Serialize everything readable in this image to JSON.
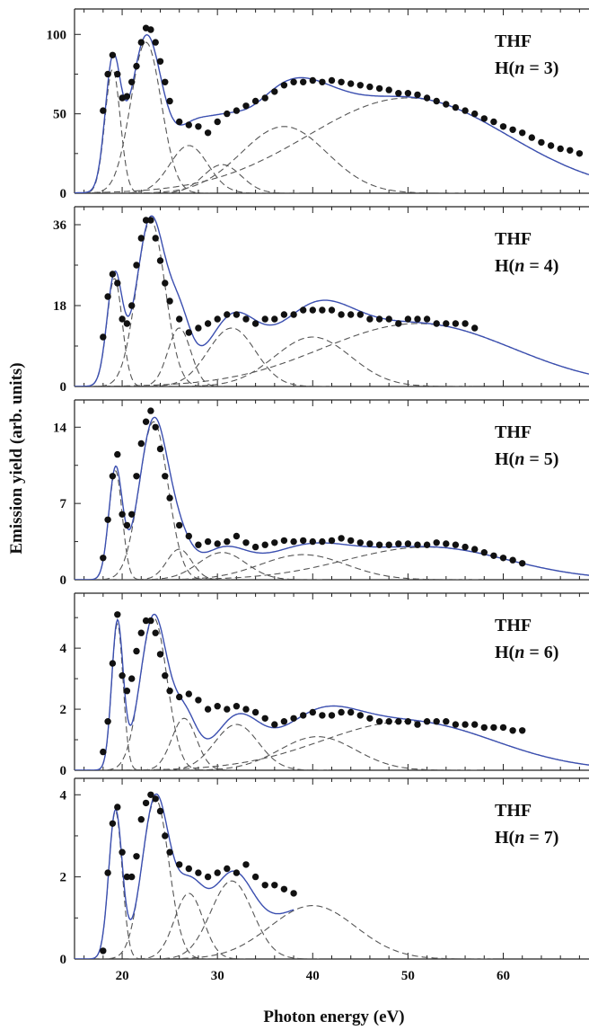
{
  "figure": {
    "xlabel": "Photon energy (eV)",
    "ylabel": "Emission yield (arb. units)",
    "x_tick_labels": [
      "20",
      "30",
      "40",
      "50",
      "60"
    ]
  },
  "style": {
    "fit_color": "#3b4fb0",
    "component_color": "#555555",
    "point_color": "#111111",
    "axis_color": "#222222"
  },
  "chart_data": [
    {
      "type": "scatter",
      "molecule": "THF",
      "label_state": "H(n = 3)",
      "xlim": [
        15,
        69
      ],
      "ylim": [
        0,
        116
      ],
      "yticks": [
        0,
        50,
        100
      ],
      "data_end": 68,
      "fit_end": 69,
      "components": [
        {
          "center": 19.0,
          "amplitude": 78,
          "sigma": 0.8
        },
        {
          "center": 22.5,
          "amplitude": 95,
          "sigma": 1.6
        },
        {
          "center": 27.0,
          "amplitude": 30,
          "sigma": 2.0
        },
        {
          "center": 30.5,
          "amplitude": 18,
          "sigma": 2.0
        },
        {
          "center": 37.0,
          "amplitude": 42,
          "sigma": 4.5
        },
        {
          "center": 50.0,
          "amplitude": 60,
          "sigma": 10.5
        }
      ],
      "points_x": [
        18.0,
        18.5,
        19.0,
        19.5,
        20.0,
        20.5,
        21.0,
        21.5,
        22.0,
        22.5,
        23.0,
        23.5,
        24.0,
        24.5,
        25.0,
        26.0,
        27.0,
        28.0,
        29.0,
        30.0,
        31.0,
        32.0,
        33.0,
        34.0,
        35.0,
        36.0,
        37.0,
        38.0,
        39.0,
        40.0,
        41.0,
        42.0,
        43.0,
        44.0,
        45.0,
        46.0,
        47.0,
        48.0,
        49.0,
        50.0,
        51.0,
        52.0,
        53.0,
        54.0,
        55.0,
        56.0,
        57.0,
        58.0,
        59.0,
        60.0,
        61.0,
        62.0,
        63.0,
        64.0,
        65.0,
        66.0,
        67.0,
        68.0
      ],
      "points_y": [
        52,
        75,
        87,
        75,
        60,
        61,
        70,
        80,
        95,
        104,
        103,
        95,
        83,
        70,
        58,
        45,
        43,
        42,
        38,
        45,
        50,
        52,
        55,
        58,
        60,
        64,
        68,
        70,
        70,
        71,
        70,
        71,
        70,
        69,
        68,
        67,
        66,
        65,
        63,
        63,
        62,
        60,
        58,
        56,
        54,
        52,
        50,
        47,
        45,
        42,
        40,
        38,
        35,
        32,
        30,
        28,
        27,
        25
      ]
    },
    {
      "type": "scatter",
      "molecule": "THF",
      "label_state": "H(n = 4)",
      "xlim": [
        15,
        69
      ],
      "ylim": [
        0,
        40
      ],
      "yticks": [
        0,
        18,
        36
      ],
      "data_end": 57,
      "fit_end": 69,
      "components": [
        {
          "center": 19.2,
          "amplitude": 24,
          "sigma": 0.8
        },
        {
          "center": 23.0,
          "amplitude": 37,
          "sigma": 1.5
        },
        {
          "center": 26.0,
          "amplitude": 13,
          "sigma": 1.2
        },
        {
          "center": 31.5,
          "amplitude": 13,
          "sigma": 2.5
        },
        {
          "center": 40.0,
          "amplitude": 11,
          "sigma": 4.0
        },
        {
          "center": 51.0,
          "amplitude": 14,
          "sigma": 10.0
        }
      ],
      "points_x": [
        18.0,
        18.5,
        19.0,
        19.5,
        20.0,
        20.5,
        21.0,
        21.5,
        22.0,
        22.5,
        23.0,
        23.5,
        24.0,
        24.5,
        25.0,
        26.0,
        27.0,
        28.0,
        29.0,
        30.0,
        31.0,
        32.0,
        33.0,
        34.0,
        35.0,
        36.0,
        37.0,
        38.0,
        39.0,
        40.0,
        41.0,
        42.0,
        43.0,
        44.0,
        45.0,
        46.0,
        47.0,
        48.0,
        49.0,
        50.0,
        51.0,
        52.0,
        53.0,
        54.0,
        55.0,
        56.0,
        57.0
      ],
      "points_y": [
        11,
        20,
        25,
        23,
        15,
        14,
        18,
        27,
        33,
        37,
        37,
        33,
        28,
        23,
        19,
        15,
        12,
        13,
        14,
        15,
        16,
        16,
        15,
        14,
        15,
        15,
        16,
        16,
        17,
        17,
        17,
        17,
        16,
        16,
        16,
        15,
        15,
        15,
        14,
        15,
        15,
        15,
        14,
        14,
        14,
        14,
        13
      ]
    },
    {
      "type": "scatter",
      "molecule": "THF",
      "label_state": "H(n = 5)",
      "xlim": [
        15,
        69
      ],
      "ylim": [
        0,
        16.5
      ],
      "yticks": [
        0,
        7,
        14
      ],
      "data_end": 62,
      "fit_end": 69,
      "components": [
        {
          "center": 19.3,
          "amplitude": 10,
          "sigma": 0.7
        },
        {
          "center": 23.3,
          "amplitude": 14.5,
          "sigma": 1.5
        },
        {
          "center": 26.0,
          "amplitude": 2.8,
          "sigma": 1.3
        },
        {
          "center": 30.5,
          "amplitude": 2.5,
          "sigma": 2.5
        },
        {
          "center": 39.0,
          "amplitude": 2.3,
          "sigma": 4.5
        },
        {
          "center": 52.0,
          "amplitude": 3.0,
          "sigma": 8.5
        }
      ],
      "points_x": [
        18.0,
        18.5,
        19.0,
        19.5,
        20.0,
        20.5,
        21.0,
        21.5,
        22.0,
        22.5,
        23.0,
        23.5,
        24.0,
        24.5,
        25.0,
        26.0,
        27.0,
        28.0,
        29.0,
        30.0,
        31.0,
        32.0,
        33.0,
        34.0,
        35.0,
        36.0,
        37.0,
        38.0,
        39.0,
        40.0,
        41.0,
        42.0,
        43.0,
        44.0,
        45.0,
        46.0,
        47.0,
        48.0,
        49.0,
        50.0,
        51.0,
        52.0,
        53.0,
        54.0,
        55.0,
        56.0,
        57.0,
        58.0,
        59.0,
        60.0,
        61.0,
        62.0
      ],
      "points_y": [
        2.0,
        5.5,
        9.5,
        11.5,
        6.0,
        5.0,
        6.0,
        9.5,
        12.5,
        14.5,
        15.5,
        14.0,
        12.0,
        9.5,
        7.5,
        5.0,
        4.0,
        3.2,
        3.5,
        3.3,
        3.5,
        4.0,
        3.4,
        3.0,
        3.2,
        3.4,
        3.6,
        3.5,
        3.6,
        3.5,
        3.5,
        3.6,
        3.8,
        3.6,
        3.4,
        3.3,
        3.2,
        3.2,
        3.3,
        3.3,
        3.2,
        3.2,
        3.4,
        3.3,
        3.2,
        3.0,
        2.8,
        2.5,
        2.2,
        2.0,
        1.8,
        1.5
      ]
    },
    {
      "type": "scatter",
      "molecule": "THF",
      "label_state": "H(n = 6)",
      "xlim": [
        15,
        69
      ],
      "ylim": [
        0,
        5.8
      ],
      "yticks": [
        0,
        2,
        4
      ],
      "data_end": 62,
      "fit_end": 69,
      "components": [
        {
          "center": 19.5,
          "amplitude": 4.8,
          "sigma": 0.6
        },
        {
          "center": 23.3,
          "amplitude": 5.0,
          "sigma": 1.4
        },
        {
          "center": 26.5,
          "amplitude": 1.7,
          "sigma": 1.3
        },
        {
          "center": 32.0,
          "amplitude": 1.5,
          "sigma": 2.3
        },
        {
          "center": 40.5,
          "amplitude": 1.1,
          "sigma": 4.0
        },
        {
          "center": 50.0,
          "amplitude": 1.6,
          "sigma": 9.0
        }
      ],
      "points_x": [
        18.0,
        18.5,
        19.0,
        19.5,
        20.0,
        20.5,
        21.0,
        21.5,
        22.0,
        22.5,
        23.0,
        23.5,
        24.0,
        24.5,
        25.0,
        26.0,
        27.0,
        28.0,
        29.0,
        30.0,
        31.0,
        32.0,
        33.0,
        34.0,
        35.0,
        36.0,
        37.0,
        38.0,
        39.0,
        40.0,
        41.0,
        42.0,
        43.0,
        44.0,
        45.0,
        46.0,
        47.0,
        48.0,
        49.0,
        50.0,
        51.0,
        52.0,
        53.0,
        54.0,
        55.0,
        56.0,
        57.0,
        58.0,
        59.0,
        60.0,
        61.0,
        62.0
      ],
      "points_y": [
        0.6,
        1.6,
        3.5,
        5.1,
        3.1,
        2.6,
        3.0,
        3.9,
        4.5,
        4.9,
        4.9,
        4.5,
        3.8,
        3.1,
        2.6,
        2.4,
        2.5,
        2.3,
        2.0,
        2.1,
        2.0,
        2.1,
        2.0,
        1.9,
        1.7,
        1.5,
        1.6,
        1.7,
        1.8,
        1.9,
        1.8,
        1.8,
        1.9,
        1.9,
        1.8,
        1.7,
        1.6,
        1.6,
        1.6,
        1.6,
        1.5,
        1.6,
        1.6,
        1.6,
        1.5,
        1.5,
        1.5,
        1.4,
        1.4,
        1.4,
        1.3,
        1.3
      ]
    },
    {
      "type": "scatter",
      "molecule": "THF",
      "label_state": "H(n = 7)",
      "xlim": [
        15,
        69
      ],
      "ylim": [
        0,
        4.4
      ],
      "yticks": [
        0,
        2,
        4
      ],
      "data_end": 38,
      "fit_end": 38,
      "components": [
        {
          "center": 19.3,
          "amplitude": 3.6,
          "sigma": 0.7
        },
        {
          "center": 23.5,
          "amplitude": 3.9,
          "sigma": 1.4
        },
        {
          "center": 27.0,
          "amplitude": 1.6,
          "sigma": 1.5
        },
        {
          "center": 31.5,
          "amplitude": 1.9,
          "sigma": 2.2
        },
        {
          "center": 40.0,
          "amplitude": 1.3,
          "sigma": 4.5
        }
      ],
      "points_x": [
        18.0,
        18.5,
        19.0,
        19.5,
        20.0,
        20.5,
        21.0,
        21.5,
        22.0,
        22.5,
        23.0,
        23.5,
        24.0,
        24.5,
        25.0,
        26.0,
        27.0,
        28.0,
        29.0,
        30.0,
        31.0,
        32.0,
        33.0,
        34.0,
        35.0,
        36.0,
        37.0,
        38.0
      ],
      "points_y": [
        0.2,
        2.1,
        3.3,
        3.7,
        2.6,
        2.0,
        2.0,
        2.5,
        3.4,
        3.8,
        4.0,
        3.9,
        3.6,
        3.0,
        2.6,
        2.3,
        2.2,
        2.1,
        2.0,
        2.1,
        2.2,
        2.1,
        2.3,
        2.0,
        1.8,
        1.8,
        1.7,
        1.6
      ]
    }
  ]
}
